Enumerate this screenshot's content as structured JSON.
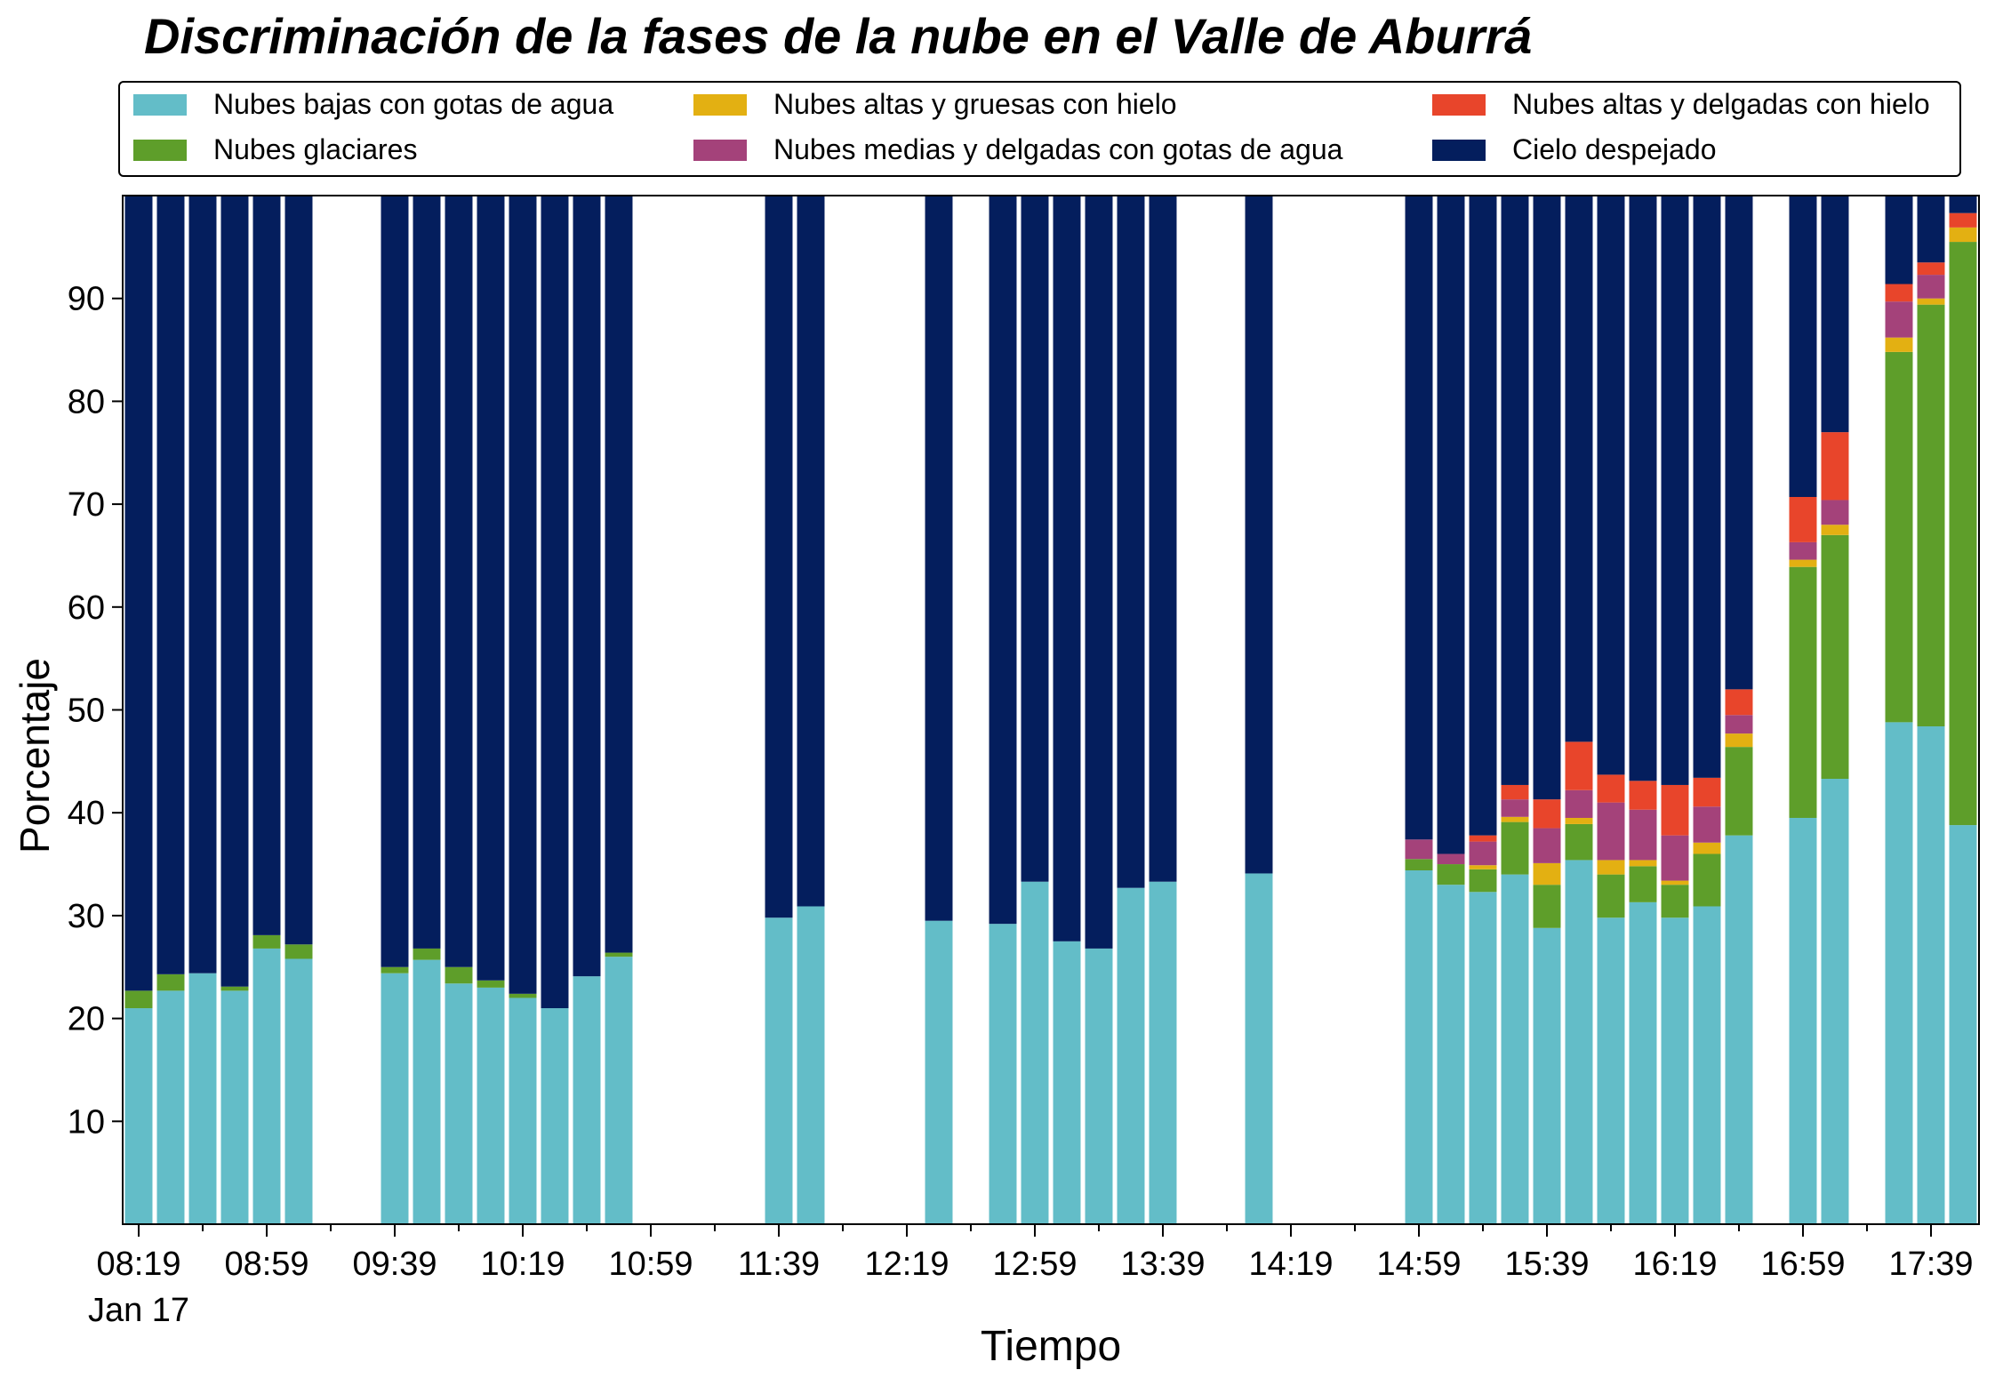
{
  "chart_data": {
    "type": "bar",
    "stacked": true,
    "title": "Discriminación de la fases de la nube en el Valle de Aburrá",
    "xlabel": "Tiempo",
    "ylabel": "Porcentaje",
    "ylim": [
      0,
      100
    ],
    "yticks": [
      10,
      20,
      30,
      40,
      50,
      60,
      70,
      80,
      90
    ],
    "xtick_labels": [
      "08:19",
      "08:59",
      "09:39",
      "10:19",
      "10:59",
      "11:39",
      "12:19",
      "12:59",
      "13:39",
      "14:19",
      "14:59",
      "15:39",
      "16:19",
      "16:59",
      "17:39"
    ],
    "xtick_sublabel": "Jan 17",
    "grid": false,
    "legend_position": "top",
    "x": [
      "08:19",
      "08:29",
      "08:39",
      "08:49",
      "08:59",
      "09:09",
      "09:39",
      "09:49",
      "09:59",
      "10:09",
      "10:19",
      "10:29",
      "10:39",
      "10:49",
      "11:39",
      "11:49",
      "12:29",
      "12:49",
      "12:59",
      "13:09",
      "13:19",
      "13:29",
      "13:39",
      "14:09",
      "14:59",
      "15:09",
      "15:19",
      "15:29",
      "15:39",
      "15:49",
      "15:59",
      "16:09",
      "16:19",
      "16:29",
      "16:39",
      "16:59",
      "17:09",
      "17:29",
      "17:39",
      "17:49"
    ],
    "series": [
      {
        "name": "Nubes bajas con gotas de agua",
        "color": "#63bdc8",
        "values": [
          21.0,
          22.7,
          24.4,
          22.7,
          26.8,
          25.8,
          24.4,
          25.7,
          23.4,
          23.0,
          22.0,
          21.0,
          24.1,
          26.0,
          29.8,
          30.9,
          29.5,
          29.2,
          33.3,
          27.5,
          26.8,
          32.7,
          33.3,
          34.1,
          34.4,
          33.0,
          32.3,
          34.0,
          28.8,
          35.4,
          29.8,
          31.3,
          29.8,
          30.9,
          37.8,
          39.5,
          43.3,
          48.8,
          48.4,
          38.8
        ]
      },
      {
        "name": "Nubes glaciares",
        "color": "#5e9e2a",
        "values": [
          1.7,
          1.6,
          0,
          0.4,
          1.3,
          1.4,
          0.6,
          1.1,
          1.6,
          0.7,
          0.4,
          0,
          0,
          0.4,
          0,
          0,
          0,
          0,
          0,
          0,
          0,
          0,
          0,
          0,
          1.1,
          2.0,
          2.2,
          5.1,
          4.2,
          3.5,
          4.2,
          3.5,
          3.2,
          5.1,
          8.6,
          24.4,
          23.7,
          36.0,
          41.0,
          56.7
        ]
      },
      {
        "name": "Nubes altas y gruesas con hielo",
        "color": "#e3b012",
        "values": [
          0,
          0,
          0,
          0,
          0,
          0,
          0,
          0,
          0,
          0,
          0,
          0,
          0,
          0,
          0,
          0,
          0,
          0,
          0,
          0,
          0,
          0,
          0,
          0,
          0,
          0,
          0.4,
          0.5,
          2.1,
          0.6,
          1.4,
          0.6,
          0.4,
          1.1,
          1.3,
          0.7,
          1.0,
          1.4,
          0.6,
          1.4
        ]
      },
      {
        "name": "Nubes medias y delgadas con gotas de agua",
        "color": "#a4427a",
        "values": [
          0,
          0,
          0,
          0,
          0,
          0,
          0,
          0,
          0,
          0,
          0,
          0,
          0,
          0,
          0,
          0,
          0,
          0,
          0,
          0,
          0,
          0,
          0,
          0,
          1.9,
          1.0,
          2.3,
          1.7,
          3.4,
          2.7,
          5.6,
          4.9,
          4.4,
          3.5,
          1.8,
          1.7,
          2.4,
          3.5,
          2.3,
          0
        ]
      },
      {
        "name": "Nubes altas y delgadas con hielo",
        "color": "#e8452b",
        "values": [
          0,
          0,
          0,
          0,
          0,
          0,
          0,
          0,
          0,
          0,
          0,
          0,
          0,
          0,
          0,
          0,
          0,
          0,
          0,
          0,
          0,
          0,
          0,
          0,
          0,
          0,
          0.6,
          1.4,
          2.8,
          4.7,
          2.7,
          2.8,
          4.9,
          2.8,
          2.5,
          4.4,
          6.6,
          1.7,
          1.2,
          1.4
        ]
      },
      {
        "name": "Cielo despejado",
        "color": "#041e5d",
        "values": [
          77.3,
          75.7,
          75.6,
          76.9,
          71.9,
          72.8,
          75.0,
          73.2,
          75.0,
          76.3,
          77.6,
          79.0,
          75.9,
          73.6,
          70.2,
          69.1,
          70.5,
          70.8,
          66.7,
          72.5,
          73.2,
          67.3,
          66.7,
          65.9,
          62.6,
          64.0,
          62.2,
          57.3,
          58.7,
          53.1,
          56.3,
          56.9,
          57.3,
          56.6,
          48.0,
          29.3,
          23.0,
          8.6,
          6.5,
          1.7
        ]
      }
    ]
  }
}
